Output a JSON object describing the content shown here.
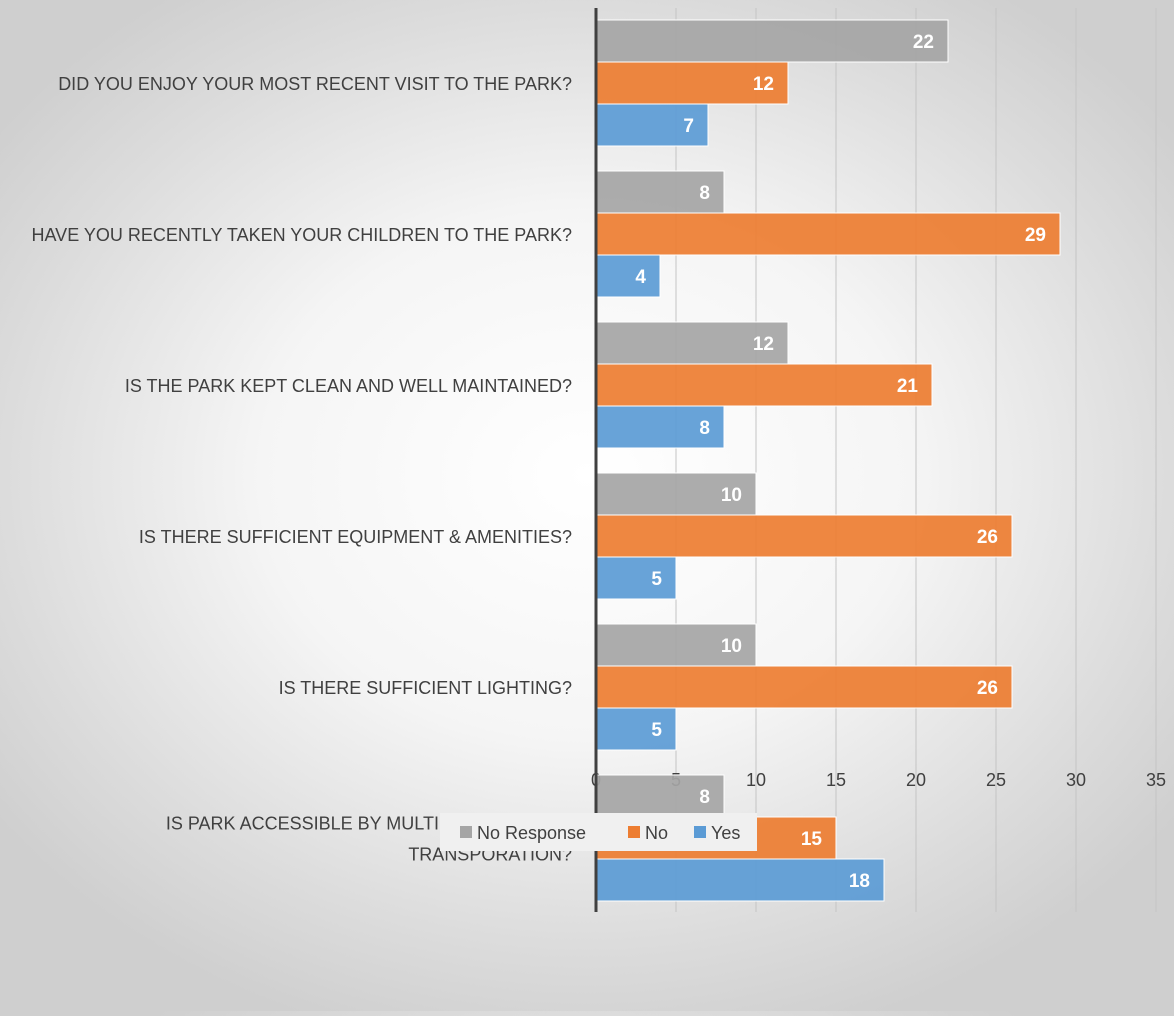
{
  "chart_data": {
    "type": "bar",
    "orientation": "horizontal",
    "categories": [
      "DID YOU ENJOY YOUR MOST RECENT VISIT TO THE PARK?",
      "HAVE YOU RECENTLY TAKEN YOUR CHILDREN TO THE PARK?",
      "IS THE PARK KEPT CLEAN AND WELL MAINTAINED?",
      "IS THERE SUFFICIENT EQUIPMENT & AMENITIES?",
      "IS THERE SUFFICIENT LIGHTING?",
      "IS PARK ACCESSIBLE BY MULTIPLE MEANS OF TRANSPORATION?"
    ],
    "series": [
      {
        "name": "No Response",
        "color": "#a5a5a5",
        "values": [
          22,
          8,
          12,
          10,
          10,
          8
        ]
      },
      {
        "name": "No",
        "color": "#ed7d31",
        "values": [
          12,
          29,
          21,
          26,
          26,
          15
        ]
      },
      {
        "name": "Yes",
        "color": "#5b9bd5",
        "values": [
          7,
          4,
          8,
          5,
          5,
          18
        ]
      }
    ],
    "xlim": [
      0,
      35
    ],
    "xticks": [
      0,
      5,
      10,
      15,
      20,
      25,
      30,
      35
    ],
    "grid": true,
    "data_labels": true,
    "legend_position": "bottom",
    "title": "",
    "xlabel": "",
    "ylabel": ""
  }
}
